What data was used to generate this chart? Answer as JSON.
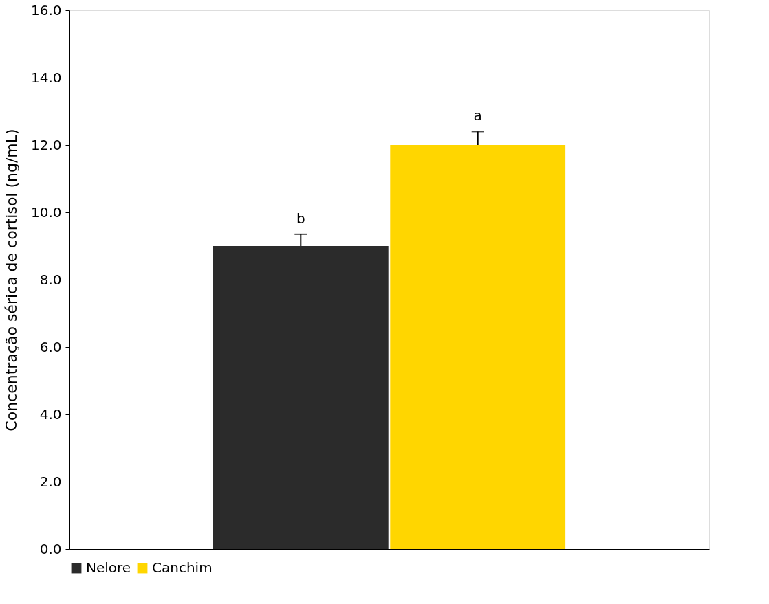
{
  "chart_data": {
    "type": "bar",
    "ylabel": "Concentração sérica de cortisol (ng/mL)",
    "categories": [
      null
    ],
    "series": [
      {
        "name": "Nelore",
        "color": "#2b2b2b",
        "values": [
          9.0
        ],
        "errors": [
          [
            9.0,
            9.35
          ]
        ]
      },
      {
        "name": "Canchim",
        "color": "#ffd600",
        "values": [
          12.0
        ],
        "errors": [
          [
            12.0,
            12.4
          ]
        ]
      }
    ],
    "annotations": [
      "b",
      "a"
    ],
    "ylim": [
      0,
      16
    ],
    "yticks": [
      {
        "value": 0,
        "label": "0.0"
      },
      {
        "value": 2,
        "label": "2.0"
      },
      {
        "value": 4,
        "label": "4.0"
      },
      {
        "value": 6,
        "label": "6.0"
      },
      {
        "value": 8,
        "label": "8.0"
      },
      {
        "value": 10,
        "label": "10.0"
      },
      {
        "value": 12,
        "label": "12.0"
      },
      {
        "value": 14,
        "label": "14.0"
      },
      {
        "value": 16,
        "label": "16.0"
      }
    ],
    "grid": false,
    "legend": "bottom",
    "tick_labels": "y"
  }
}
